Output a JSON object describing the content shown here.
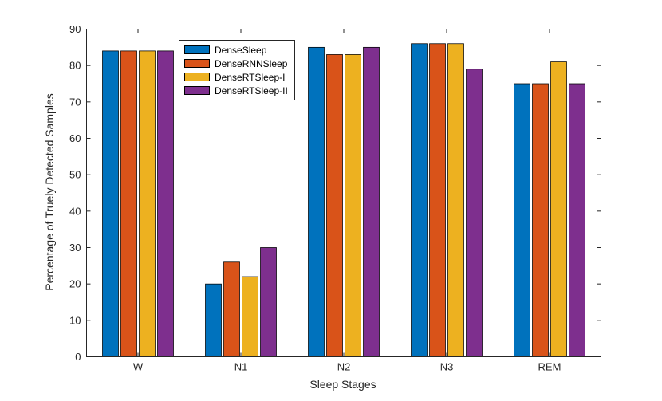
{
  "chart_data": {
    "type": "bar",
    "title": "",
    "xlabel": "Sleep Stages",
    "ylabel": "Percentage of Truely Detected Samples",
    "categories": [
      "W",
      "N1",
      "N2",
      "N3",
      "REM"
    ],
    "series": [
      {
        "name": "DenseSleep",
        "color": "#0072BD",
        "values": [
          84,
          20,
          85,
          86,
          75
        ]
      },
      {
        "name": "DenseRNNSleep",
        "color": "#D95319",
        "values": [
          84,
          26,
          83,
          86,
          75
        ]
      },
      {
        "name": "DenseRTSleep-I",
        "color": "#EDB120",
        "values": [
          84,
          22,
          83,
          86,
          81
        ]
      },
      {
        "name": "DenseRTSleep-II",
        "color": "#7E2F8E",
        "values": [
          84,
          30,
          85,
          79,
          75
        ]
      }
    ],
    "ylim": [
      0,
      90
    ],
    "yticks": [
      0,
      10,
      20,
      30,
      40,
      50,
      60,
      70,
      80,
      90
    ],
    "grid": false,
    "legend_position": "upper-left-inside",
    "axis_color": "#262626",
    "bar_edge_color": "#000000",
    "background_color": "#ffffff"
  }
}
